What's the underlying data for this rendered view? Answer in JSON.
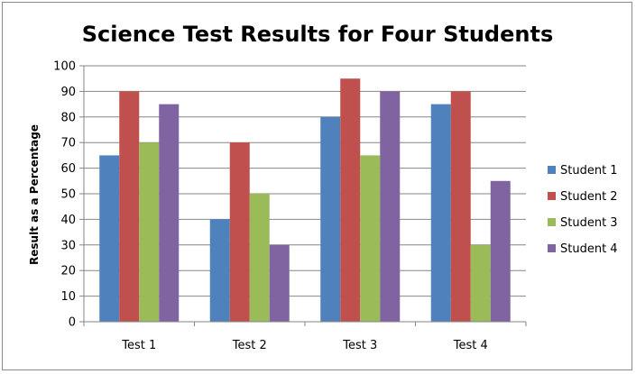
{
  "chart_data": {
    "type": "bar",
    "title": "Science Test Results for Four Students",
    "xlabel": "",
    "ylabel": "Result as a Percentage",
    "ylim": [
      0,
      100
    ],
    "yticks": [
      0,
      10,
      20,
      30,
      40,
      50,
      60,
      70,
      80,
      90,
      100
    ],
    "grid": true,
    "legend_position": "right",
    "categories": [
      "Test 1",
      "Test 2",
      "Test 3",
      "Test 4"
    ],
    "series": [
      {
        "name": "Student 1",
        "color": "#4f81bd",
        "values": [
          65,
          40,
          80,
          85
        ]
      },
      {
        "name": "Student 2",
        "color": "#c0504d",
        "values": [
          90,
          70,
          95,
          90
        ]
      },
      {
        "name": "Student 3",
        "color": "#9bbb59",
        "values": [
          70,
          50,
          65,
          30
        ]
      },
      {
        "name": "Student 4",
        "color": "#8064a2",
        "values": [
          85,
          30,
          90,
          55
        ]
      }
    ]
  }
}
